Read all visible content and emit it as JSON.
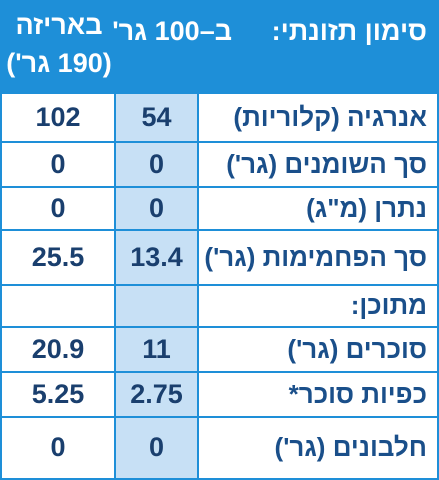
{
  "header": {
    "title": "סימון תזונתי:",
    "per_100g": "ב–100 גר'",
    "per_package": "באריזה",
    "package_size": "(190 גר')"
  },
  "table": {
    "rows": [
      [
        "אנרגיה (קלוריות)",
        "54",
        "102"
      ],
      [
        "סך השומנים (גר')",
        "0",
        "0"
      ],
      [
        "נתרן (מ\"ג)",
        "0",
        "0"
      ],
      [
        "סך הפחמימות (גר')",
        "13.4",
        "25.5"
      ],
      [
        "מתוכן:"
      ],
      [
        "סוכרים (גר')",
        "11",
        "20.9"
      ],
      [
        "כפיות סוכר*",
        "2.75",
        "5.25"
      ],
      [
        "חלבונים (גר')",
        "0",
        "0"
      ]
    ]
  }
}
